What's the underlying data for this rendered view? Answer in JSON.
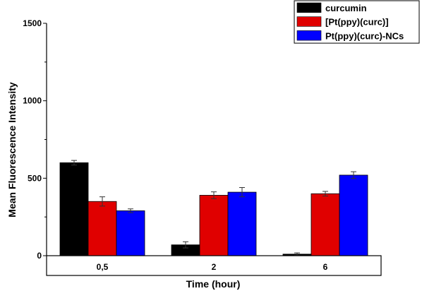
{
  "chart_data": {
    "type": "bar",
    "categories": [
      "0,5",
      "2",
      "6"
    ],
    "series": [
      {
        "name": "curcumin",
        "color": "#000000",
        "values": [
          600,
          70,
          10
        ],
        "errors": [
          15,
          20,
          8
        ]
      },
      {
        "name": "[Pt(ppy)(curc)]",
        "color": "#e00000",
        "values": [
          350,
          390,
          400
        ],
        "errors": [
          30,
          22,
          15
        ]
      },
      {
        "name": "Pt(ppy)(curc)-NCs",
        "color": "#0000ff",
        "values": [
          290,
          410,
          520
        ],
        "errors": [
          12,
          30,
          22
        ]
      }
    ],
    "xlabel": "Time (hour)",
    "ylabel": "Mean Fluorescence Intensity",
    "yticks": [
      0,
      500,
      1000,
      1500
    ],
    "ylim": [
      0,
      1500
    ],
    "grid": false,
    "legend_position": "top-right"
  }
}
